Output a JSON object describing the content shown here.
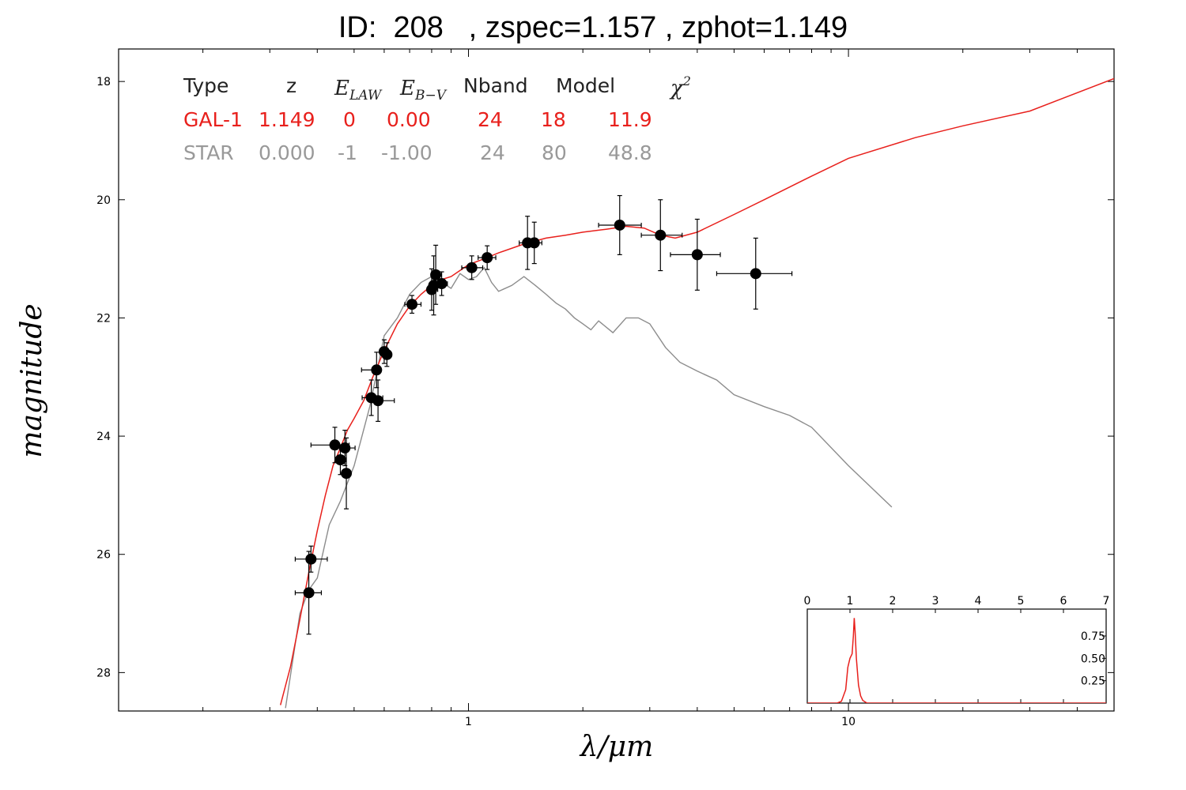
{
  "title": {
    "id_label": "ID:",
    "id_value": "208",
    "zspec": ", zspec=1.157",
    "zphot": ", zphot=1.149"
  },
  "legend_table": {
    "headers": [
      "Type",
      "z",
      "E_LAW",
      "E_B-V",
      "Nband",
      "Model",
      "χ2"
    ],
    "rows": [
      {
        "color": "#e8201c",
        "cells": [
          "GAL-1",
          "1.149",
          "0",
          "0.00",
          "24",
          "18",
          "11.9"
        ]
      },
      {
        "color": "#999999",
        "cells": [
          "STAR",
          "0.000",
          "-1",
          "-1.00",
          "24",
          "80",
          "48.8"
        ]
      }
    ]
  },
  "chart_data": [
    {
      "type": "scatter",
      "title": "ID:  208   , zspec=1.157 , zphot=1.149",
      "xlabel": "λ/μm",
      "ylabel": "magnitude",
      "xscale": "log",
      "xlim": [
        0.12,
        50
      ],
      "ylim": [
        28.65,
        17.45
      ],
      "y_inverted": true,
      "x_ticks": [
        "1",
        "10"
      ],
      "y_ticks": [
        "18",
        "20",
        "22",
        "24",
        "26",
        "28"
      ],
      "colors": {
        "galaxy": "#e8201c",
        "star": "#8c8c8c",
        "points": "#000000"
      },
      "photometry": [
        {
          "x": 0.385,
          "y": 26.08,
          "xerr_lo": 0.035,
          "xerr_hi": 0.04,
          "yerr": 0.22
        },
        {
          "x": 0.38,
          "y": 26.65,
          "xerr_lo": 0.03,
          "xerr_hi": 0.03,
          "yerr": 0.7
        },
        {
          "x": 0.445,
          "y": 24.15,
          "xerr_lo": 0.06,
          "xerr_hi": 0.04,
          "yerr": 0.3
        },
        {
          "x": 0.46,
          "y": 24.4,
          "xerr_lo": 0.01,
          "xerr_hi": 0.015,
          "yerr": 0.25
        },
        {
          "x": 0.473,
          "y": 24.2,
          "xerr_lo": 0.015,
          "xerr_hi": 0.03,
          "yerr": 0.3
        },
        {
          "x": 0.477,
          "y": 24.63,
          "xerr_lo": 0.01,
          "xerr_hi": 0.01,
          "yerr": 0.6
        },
        {
          "x": 0.555,
          "y": 23.35,
          "xerr_lo": 0.03,
          "xerr_hi": 0.04,
          "yerr": 0.3
        },
        {
          "x": 0.573,
          "y": 22.88,
          "xerr_lo": 0.05,
          "xerr_hi": 0.01,
          "yerr": 0.3
        },
        {
          "x": 0.578,
          "y": 23.4,
          "xerr_lo": 0.02,
          "xerr_hi": 0.06,
          "yerr": 0.35
        },
        {
          "x": 0.6,
          "y": 22.57,
          "xerr_lo": 0.012,
          "xerr_hi": 0.01,
          "yerr": 0.2
        },
        {
          "x": 0.61,
          "y": 22.62,
          "xerr_lo": 0.01,
          "xerr_hi": 0.015,
          "yerr": 0.2
        },
        {
          "x": 0.71,
          "y": 21.77,
          "xerr_lo": 0.03,
          "xerr_hi": 0.04,
          "yerr": 0.15
        },
        {
          "x": 0.8,
          "y": 21.52,
          "xerr_lo": 0.02,
          "xerr_hi": 0.03,
          "yerr": 0.35
        },
        {
          "x": 0.81,
          "y": 21.45,
          "xerr_lo": 0.012,
          "xerr_hi": 0.012,
          "yerr": 0.5
        },
        {
          "x": 0.82,
          "y": 21.27,
          "xerr_lo": 0.01,
          "xerr_hi": 0.01,
          "yerr": 0.5
        },
        {
          "x": 0.85,
          "y": 21.42,
          "xerr_lo": 0.03,
          "xerr_hi": 0.03,
          "yerr": 0.2
        },
        {
          "x": 1.02,
          "y": 21.15,
          "xerr_lo": 0.06,
          "xerr_hi": 0.07,
          "yerr": 0.2
        },
        {
          "x": 1.12,
          "y": 20.98,
          "xerr_lo": 0.06,
          "xerr_hi": 0.06,
          "yerr": 0.2
        },
        {
          "x": 1.43,
          "y": 20.73,
          "xerr_lo": 0.07,
          "xerr_hi": 0.08,
          "yerr": 0.45
        },
        {
          "x": 1.49,
          "y": 20.73,
          "xerr_lo": 0.06,
          "xerr_hi": 0.07,
          "yerr": 0.35
        },
        {
          "x": 2.5,
          "y": 20.43,
          "xerr_lo": 0.3,
          "xerr_hi": 0.35,
          "yerr": 0.5
        },
        {
          "x": 3.2,
          "y": 20.6,
          "xerr_lo": 0.35,
          "xerr_hi": 0.45,
          "yerr": 0.6
        },
        {
          "x": 4.0,
          "y": 20.93,
          "xerr_lo": 0.6,
          "xerr_hi": 0.6,
          "yerr": 0.6
        },
        {
          "x": 5.7,
          "y": 21.25,
          "xerr_lo": 1.2,
          "xerr_hi": 1.4,
          "yerr": 0.6
        }
      ],
      "galaxy_model": {
        "name": "GAL-1",
        "x": [
          0.32,
          0.34,
          0.36,
          0.38,
          0.4,
          0.42,
          0.44,
          0.46,
          0.48,
          0.5,
          0.53,
          0.56,
          0.6,
          0.65,
          0.7,
          0.75,
          0.8,
          0.85,
          0.9,
          1.0,
          1.1,
          1.2,
          1.4,
          1.6,
          1.8,
          2.0,
          2.3,
          2.6,
          2.9,
          3.2,
          3.5,
          4.0,
          5.0,
          6.0,
          8.0,
          10.0,
          15.0,
          20.0,
          30.0,
          50.0
        ],
        "y": [
          28.55,
          27.9,
          27.1,
          26.3,
          25.6,
          25.0,
          24.5,
          24.2,
          23.9,
          23.7,
          23.4,
          23.0,
          22.55,
          22.1,
          21.8,
          21.6,
          21.45,
          21.35,
          21.3,
          21.1,
          21.0,
          20.9,
          20.75,
          20.65,
          20.6,
          20.55,
          20.5,
          20.45,
          20.48,
          20.6,
          20.65,
          20.55,
          20.25,
          20.0,
          19.6,
          19.3,
          18.95,
          18.75,
          18.5,
          17.95
        ]
      },
      "star_model": {
        "name": "STAR",
        "x": [
          0.33,
          0.36,
          0.38,
          0.4,
          0.43,
          0.46,
          0.5,
          0.55,
          0.6,
          0.65,
          0.7,
          0.75,
          0.8,
          0.85,
          0.9,
          0.95,
          1.0,
          1.05,
          1.1,
          1.15,
          1.2,
          1.3,
          1.4,
          1.5,
          1.6,
          1.7,
          1.8,
          1.9,
          2.0,
          2.1,
          2.2,
          2.4,
          2.6,
          2.8,
          3.0,
          3.3,
          3.6,
          4.0,
          4.5,
          5.0,
          6.0,
          7.0,
          8.0,
          10.0,
          13.0
        ],
        "y": [
          28.6,
          27.0,
          26.6,
          26.4,
          25.5,
          25.1,
          24.5,
          23.5,
          22.3,
          22.0,
          21.6,
          21.4,
          21.3,
          21.4,
          21.5,
          21.25,
          21.35,
          21.3,
          21.15,
          21.4,
          21.55,
          21.45,
          21.3,
          21.45,
          21.6,
          21.75,
          21.85,
          22.0,
          22.1,
          22.2,
          22.05,
          22.25,
          22.0,
          22.0,
          22.1,
          22.5,
          22.75,
          22.9,
          23.05,
          23.3,
          23.5,
          23.65,
          23.85,
          24.5,
          25.2
        ]
      }
    },
    {
      "type": "line",
      "title": "",
      "xlabel": "",
      "ylabel": "",
      "xlim": [
        0,
        7
      ],
      "ylim": [
        0,
        1.05
      ],
      "x_ticks": [
        "0",
        "1",
        "2",
        "3",
        "4",
        "5",
        "6",
        "7"
      ],
      "y_ticks": [
        "0.25",
        "0.50",
        "0.75"
      ],
      "color": "#e8201c",
      "series": [
        {
          "x": [
            0,
            0.7,
            0.8,
            0.9,
            0.95,
            1.0,
            1.05,
            1.08,
            1.1,
            1.12,
            1.15,
            1.2,
            1.25,
            1.3,
            1.4,
            7.0
          ],
          "y": [
            0,
            0,
            0.02,
            0.15,
            0.4,
            0.5,
            0.55,
            0.75,
            0.95,
            0.8,
            0.5,
            0.2,
            0.08,
            0.03,
            0,
            0
          ]
        }
      ]
    }
  ]
}
